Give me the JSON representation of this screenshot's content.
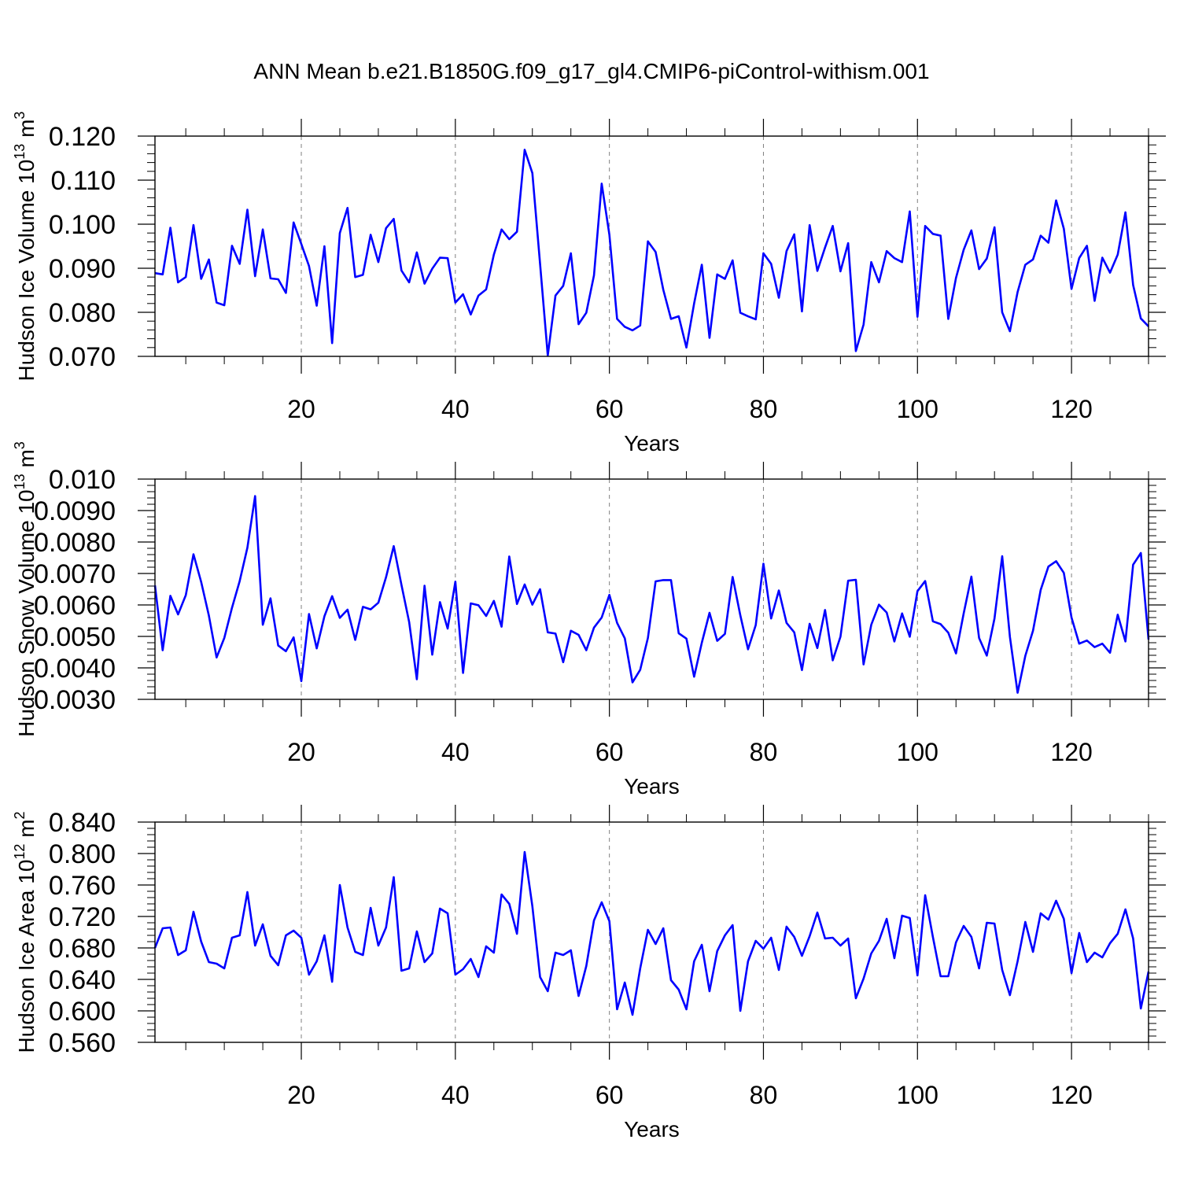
{
  "title": "ANN Mean b.e21.B1850G.f09_g17_gl4.CMIP6-piControl-withism.001",
  "colors": {
    "line": "#0000ff",
    "axes": "#000000",
    "grid": "#808080"
  },
  "chart_data": [
    {
      "type": "line",
      "ylabel_main": "Hudson Ice Volume 10",
      "ylabel_exp": "13",
      "ylabel_unit": " m",
      "ylabel_unit_exp": "3",
      "xlabel": "Years",
      "xlim": [
        1,
        130
      ],
      "ylim": [
        0.07,
        0.12
      ],
      "yticks": [
        0.07,
        0.08,
        0.09,
        0.1,
        0.11,
        0.12
      ],
      "ytick_labels": [
        "0.070",
        "0.080",
        "0.090",
        "0.100",
        "0.110",
        "0.120"
      ],
      "xticks": [
        20,
        40,
        60,
        80,
        100,
        120
      ],
      "xtick_labels": [
        "20",
        "40",
        "60",
        "80",
        "100",
        "120"
      ],
      "grid_x": [
        20,
        40,
        60,
        80,
        100,
        120
      ],
      "series": [
        {
          "values": [
            0.0889,
            0.0886,
            0.0992,
            0.0868,
            0.088,
            0.0998,
            0.0876,
            0.092,
            0.0822,
            0.0816,
            0.0951,
            0.091,
            0.1033,
            0.0882,
            0.0988,
            0.0877,
            0.0875,
            0.0844,
            0.1004,
            0.0955,
            0.0905,
            0.0815,
            0.095,
            0.073,
            0.098,
            0.1037,
            0.088,
            0.0885,
            0.0976,
            0.0914,
            0.0991,
            0.1012,
            0.0895,
            0.0868,
            0.0936,
            0.0865,
            0.0899,
            0.0924,
            0.0923,
            0.0822,
            0.0841,
            0.0795,
            0.0838,
            0.0852,
            0.0931,
            0.0988,
            0.0966,
            0.0983,
            0.1169,
            0.1116,
            0.091,
            0.0702,
            0.0838,
            0.086,
            0.0934,
            0.0773,
            0.0799,
            0.0884,
            0.1092,
            0.0976,
            0.0785,
            0.0767,
            0.0759,
            0.077,
            0.0961,
            0.0937,
            0.0851,
            0.0785,
            0.0791,
            0.072,
            0.082,
            0.0908,
            0.0742,
            0.0886,
            0.0876,
            0.0918,
            0.0799,
            0.0791,
            0.0784,
            0.0934,
            0.091,
            0.0833,
            0.0939,
            0.0977,
            0.0802,
            0.0998,
            0.0894,
            0.0947,
            0.0996,
            0.0893,
            0.0957,
            0.0712,
            0.0772,
            0.0914,
            0.0868,
            0.0939,
            0.0923,
            0.0914,
            0.1029,
            0.079,
            0.0996,
            0.0978,
            0.0974,
            0.0785,
            0.0878,
            0.0942,
            0.0986,
            0.0898,
            0.0922,
            0.0993,
            0.08,
            0.0757,
            0.0846,
            0.0908,
            0.092,
            0.0974,
            0.0958,
            0.1054,
            0.099,
            0.0853,
            0.0923,
            0.0951,
            0.0826,
            0.0924,
            0.089,
            0.0931,
            0.1027,
            0.0862,
            0.0786,
            0.0768
          ]
        }
      ]
    },
    {
      "type": "line",
      "ylabel_main": "Hudson Snow Volume 10",
      "ylabel_exp": "13",
      "ylabel_unit": " m",
      "ylabel_unit_exp": "3",
      "xlabel": "Years",
      "xlim": [
        1,
        130
      ],
      "ylim": [
        0.003,
        0.01
      ],
      "yticks": [
        0.003,
        0.004,
        0.005,
        0.006,
        0.007,
        0.008,
        0.009,
        0.01
      ],
      "ytick_labels": [
        "0.0030",
        "0.0040",
        "0.0050",
        "0.0060",
        "0.0070",
        "0.0080",
        "0.0090",
        "0.010"
      ],
      "xticks": [
        20,
        40,
        60,
        80,
        100,
        120
      ],
      "xtick_labels": [
        "20",
        "40",
        "60",
        "80",
        "100",
        "120"
      ],
      "grid_x": [
        20,
        40,
        60,
        80,
        100,
        120
      ],
      "series": [
        {
          "values": [
            0.00662,
            0.00456,
            0.00629,
            0.0057,
            0.00631,
            0.00761,
            0.00673,
            0.00566,
            0.00433,
            0.00495,
            0.00591,
            0.00676,
            0.00782,
            0.00946,
            0.00537,
            0.00621,
            0.00471,
            0.00453,
            0.00497,
            0.00358,
            0.00571,
            0.00462,
            0.00564,
            0.00628,
            0.00559,
            0.00585,
            0.00489,
            0.00594,
            0.00586,
            0.00607,
            0.00688,
            0.00787,
            0.00664,
            0.00546,
            0.00364,
            0.00661,
            0.00442,
            0.00609,
            0.00525,
            0.00674,
            0.00384,
            0.00605,
            0.00599,
            0.00565,
            0.00613,
            0.00531,
            0.00754,
            0.00603,
            0.00665,
            0.00601,
            0.0065,
            0.00513,
            0.00509,
            0.00418,
            0.00518,
            0.00505,
            0.00456,
            0.00528,
            0.0056,
            0.00632,
            0.00543,
            0.00494,
            0.00354,
            0.00394,
            0.00495,
            0.00675,
            0.00679,
            0.00679,
            0.0051,
            0.00493,
            0.00372,
            0.0048,
            0.00575,
            0.00486,
            0.00508,
            0.00689,
            0.00567,
            0.00459,
            0.00536,
            0.00731,
            0.00557,
            0.00646,
            0.00543,
            0.00513,
            0.00393,
            0.0054,
            0.00463,
            0.00584,
            0.00424,
            0.00499,
            0.00677,
            0.0068,
            0.00411,
            0.00537,
            0.00601,
            0.00576,
            0.00484,
            0.00573,
            0.00499,
            0.00644,
            0.00676,
            0.00548,
            0.00539,
            0.00512,
            0.00446,
            0.00573,
            0.0069,
            0.00495,
            0.00439,
            0.00557,
            0.00755,
            0.00499,
            0.00321,
            0.00438,
            0.00518,
            0.00648,
            0.00722,
            0.00739,
            0.00702,
            0.0056,
            0.00477,
            0.00487,
            0.00466,
            0.00477,
            0.00448,
            0.00569,
            0.00484,
            0.00728,
            0.00765,
            0.0049
          ]
        }
      ]
    },
    {
      "type": "line",
      "ylabel_main": "Hudson Ice Area 10",
      "ylabel_exp": "12",
      "ylabel_unit": " m",
      "ylabel_unit_exp": "2",
      "xlabel": "Years",
      "xlim": [
        1,
        130
      ],
      "ylim": [
        0.56,
        0.84
      ],
      "yticks": [
        0.56,
        0.6,
        0.64,
        0.68,
        0.72,
        0.76,
        0.8,
        0.84
      ],
      "ytick_labels": [
        "0.560",
        "0.600",
        "0.640",
        "0.680",
        "0.720",
        "0.760",
        "0.800",
        "0.840"
      ],
      "xticks": [
        20,
        40,
        60,
        80,
        100,
        120
      ],
      "xtick_labels": [
        "20",
        "40",
        "60",
        "80",
        "100",
        "120"
      ],
      "grid_x": [
        20,
        40,
        60,
        80,
        100,
        120
      ],
      "series": [
        {
          "values": [
            0.68,
            0.705,
            0.706,
            0.671,
            0.677,
            0.726,
            0.688,
            0.662,
            0.66,
            0.654,
            0.693,
            0.696,
            0.751,
            0.683,
            0.71,
            0.67,
            0.658,
            0.696,
            0.702,
            0.693,
            0.646,
            0.663,
            0.696,
            0.637,
            0.76,
            0.706,
            0.675,
            0.671,
            0.731,
            0.683,
            0.706,
            0.77,
            0.651,
            0.654,
            0.701,
            0.662,
            0.673,
            0.73,
            0.724,
            0.646,
            0.653,
            0.666,
            0.643,
            0.682,
            0.674,
            0.748,
            0.736,
            0.698,
            0.802,
            0.733,
            0.643,
            0.625,
            0.674,
            0.671,
            0.677,
            0.619,
            0.657,
            0.715,
            0.738,
            0.714,
            0.602,
            0.636,
            0.595,
            0.654,
            0.703,
            0.685,
            0.705,
            0.639,
            0.627,
            0.602,
            0.663,
            0.684,
            0.625,
            0.676,
            0.696,
            0.709,
            0.6,
            0.663,
            0.689,
            0.679,
            0.693,
            0.652,
            0.707,
            0.694,
            0.67,
            0.695,
            0.725,
            0.692,
            0.693,
            0.683,
            0.692,
            0.616,
            0.641,
            0.673,
            0.689,
            0.717,
            0.667,
            0.721,
            0.718,
            0.645,
            0.747,
            0.694,
            0.644,
            0.644,
            0.687,
            0.708,
            0.694,
            0.654,
            0.712,
            0.711,
            0.652,
            0.62,
            0.663,
            0.713,
            0.675,
            0.724,
            0.716,
            0.74,
            0.717,
            0.648,
            0.699,
            0.662,
            0.674,
            0.668,
            0.686,
            0.698,
            0.729,
            0.692,
            0.603,
            0.65
          ]
        }
      ]
    }
  ]
}
